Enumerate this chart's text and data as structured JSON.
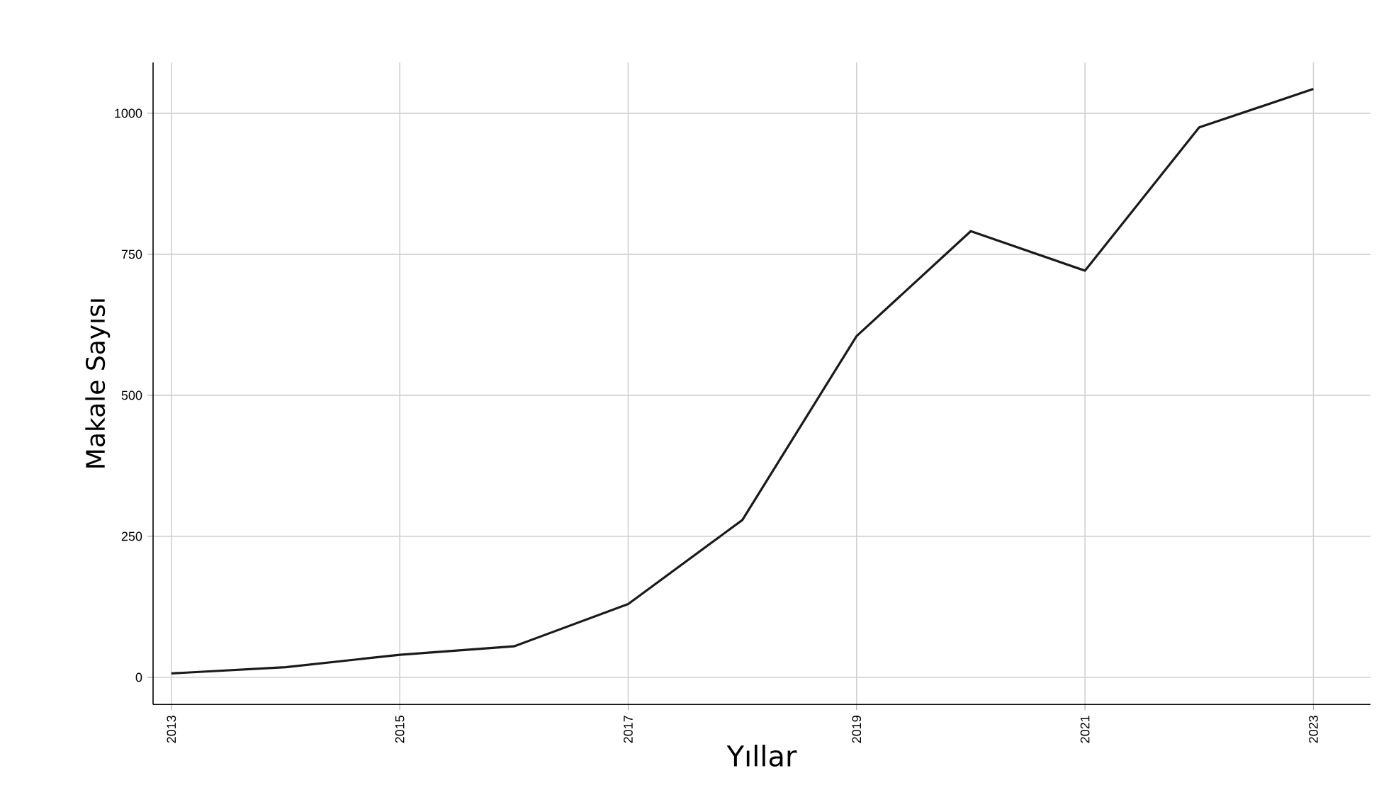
{
  "chart_data": {
    "type": "line",
    "xlabel": "Yıllar",
    "ylabel": "Makale Sayısı",
    "x": [
      2013,
      2014,
      2015,
      2016,
      2017,
      2018,
      2019,
      2020,
      2021,
      2022,
      2023
    ],
    "series": [
      {
        "color": "#1a1a1a",
        "values": [
          7,
          18,
          40,
          55,
          130,
          279,
          605,
          791,
          721,
          975,
          1043
        ]
      }
    ],
    "xlim": [
      2012.84,
      2023.5
    ],
    "ylim": [
      -48,
      1090
    ],
    "xticks": [
      2013,
      2015,
      2017,
      2019,
      2021,
      2023
    ],
    "yticks": [
      0,
      250,
      500,
      750,
      1000
    ],
    "grid": true,
    "marker": "none",
    "line_style": "solid"
  }
}
